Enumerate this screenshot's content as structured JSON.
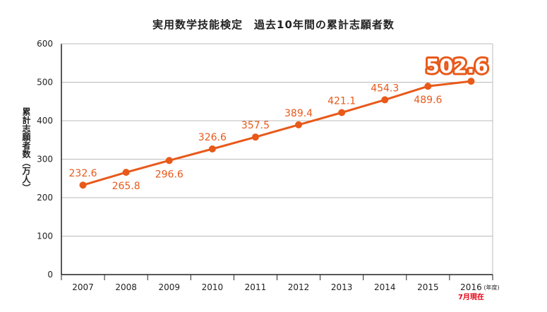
{
  "chart_data": {
    "type": "line",
    "title": "実用数学技能検定　過去10年間の累計志願者数",
    "ylabel": "累計志願者数（万人）",
    "xlabel": "",
    "x_unit": "(年度)",
    "categories": [
      "2007",
      "2008",
      "2009",
      "2010",
      "2011",
      "2012",
      "2013",
      "2014",
      "2015",
      "2016"
    ],
    "values": [
      232.6,
      265.8,
      296.6,
      326.6,
      357.5,
      389.4,
      421.1,
      454.3,
      489.6,
      502.6
    ],
    "labels": [
      "232.6",
      "265.8",
      "296.6",
      "326.6",
      "357.5",
      "389.4",
      "421.1",
      "454.3",
      "489.6",
      "502.6"
    ],
    "yticks": [
      "0",
      "100",
      "200",
      "300",
      "400",
      "500",
      "600"
    ],
    "ylim": [
      0,
      600
    ],
    "grid": true,
    "highlight_note": "7月現在",
    "colors": {
      "line": "#E8591A",
      "highlight_text": "#ffffff",
      "note": "#E60012",
      "grid": "#bbbbbb"
    }
  }
}
